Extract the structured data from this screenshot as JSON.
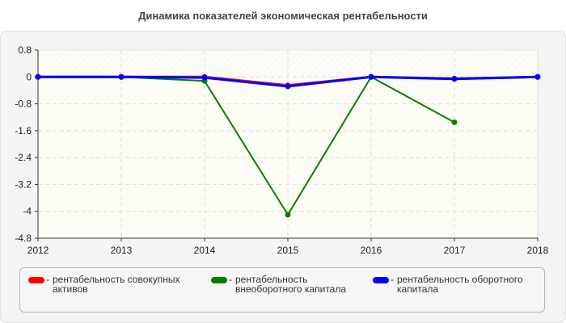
{
  "title": "Динамика показателей экономическая рентабельности",
  "chart_data": {
    "type": "line",
    "title": "Динамика показателей экономическая рентабельности",
    "xlabel": "",
    "ylabel": "",
    "x": [
      "2012",
      "2013",
      "2014",
      "2015",
      "2016",
      "2017",
      "2018"
    ],
    "yticks": [
      "0.8",
      "0",
      "-0.8",
      "-1.6",
      "-2.4",
      "-3.2",
      "-4",
      "-4.8"
    ],
    "ylim": [
      -4.8,
      0.8
    ],
    "grid": true,
    "legend_position": "bottom",
    "series": [
      {
        "name": "рентабельность совокупных активов",
        "color": "#ff0000",
        "values": [
          0,
          0,
          0,
          -0.25,
          0,
          -0.05,
          0
        ]
      },
      {
        "name": "рентабельность внеоборотного капитала",
        "color": "#008000",
        "values": [
          0,
          0,
          -0.12,
          -4.1,
          0,
          -1.35,
          null
        ]
      },
      {
        "name": "рентабельность оборотного капитала",
        "color": "#0000ff",
        "values": [
          0,
          0,
          -0.02,
          -0.28,
          0,
          -0.06,
          0
        ]
      }
    ]
  },
  "legend": [
    {
      "label": "рентабельность совокупных активов",
      "color": "#ff0000"
    },
    {
      "label": "рентабельность внеоборотного капитала",
      "color": "#008000"
    },
    {
      "label": "рентабельность оборотного капитала",
      "color": "#0000ff"
    }
  ],
  "legend_dash": "-"
}
